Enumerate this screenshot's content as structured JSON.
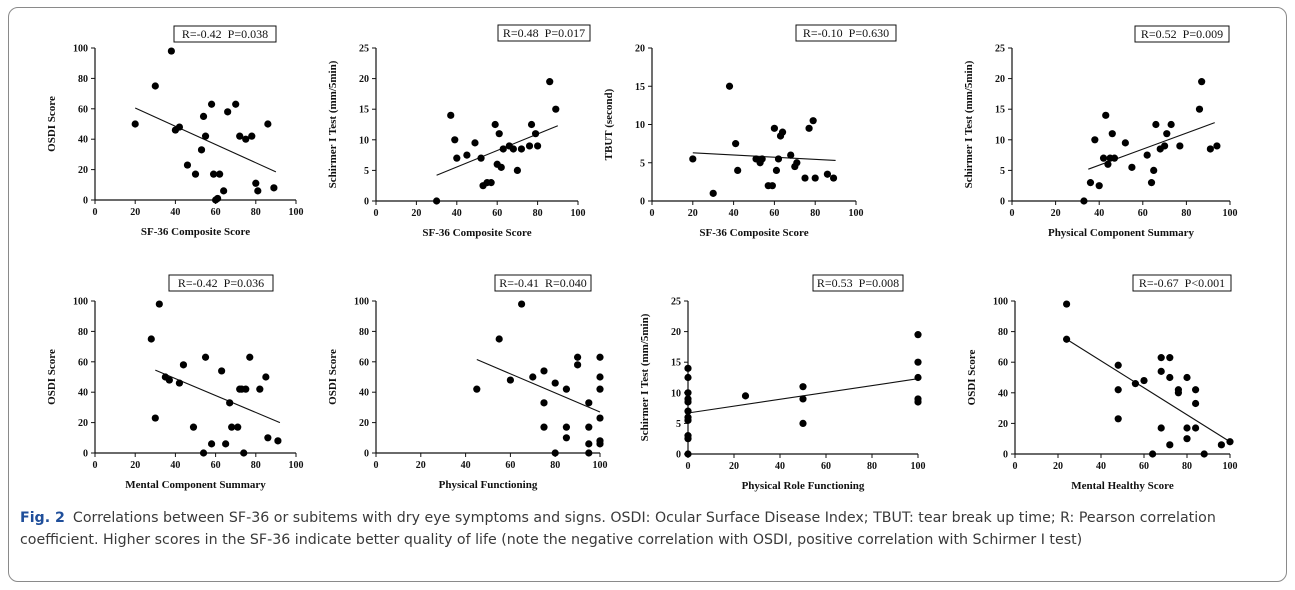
{
  "figure": {
    "caption_label": "Fig. 2",
    "caption_text": "Correlations between SF-36 or subitems with dry eye symptoms and signs. OSDI: Ocular Surface Disease Index; TBUT: tear break up time; R: Pearson correlation coefficient. Higher scores in the SF-36 indicate better quality of life (note the negative correlation with OSDI, positive correlation with Schirmer I test)"
  },
  "chart_data": [
    {
      "type": "scatter",
      "xlabel": "SF-36 Composite Score",
      "ylabel": "OSDI Score",
      "stat": "R=-0.42  P=0.038",
      "xlim": [
        0,
        100
      ],
      "ylim": [
        0,
        100
      ],
      "xticks": [
        0,
        20,
        40,
        60,
        80,
        100
      ],
      "yticks": [
        0,
        20,
        40,
        60,
        80,
        100
      ],
      "points": [
        [
          20,
          50
        ],
        [
          30,
          75
        ],
        [
          38,
          98
        ],
        [
          40,
          46
        ],
        [
          42,
          48
        ],
        [
          46,
          23
        ],
        [
          50,
          17
        ],
        [
          53,
          33
        ],
        [
          54,
          55
        ],
        [
          55,
          42
        ],
        [
          58,
          63
        ],
        [
          59,
          17
        ],
        [
          60,
          0
        ],
        [
          61,
          1
        ],
        [
          62,
          17
        ],
        [
          64,
          6
        ],
        [
          66,
          58
        ],
        [
          70,
          63
        ],
        [
          72,
          42
        ],
        [
          75,
          40
        ],
        [
          78,
          42
        ],
        [
          80,
          11
        ],
        [
          81,
          6
        ],
        [
          86,
          50
        ],
        [
          89,
          8
        ]
      ],
      "trendline": [
        [
          20,
          60.5
        ],
        [
          90,
          18.5
        ]
      ]
    },
    {
      "type": "scatter",
      "xlabel": "SF-36 Composite Score",
      "ylabel": "Schirmer I Test (mm/5min)",
      "stat": "R=0.48  P=0.017",
      "xlim": [
        0,
        100
      ],
      "ylim": [
        0,
        25
      ],
      "xticks": [
        0,
        20,
        40,
        60,
        80,
        100
      ],
      "yticks": [
        0,
        5,
        10,
        15,
        20,
        25
      ],
      "points": [
        [
          30,
          0
        ],
        [
          37,
          14
        ],
        [
          39,
          10
        ],
        [
          40,
          7
        ],
        [
          45,
          7.5
        ],
        [
          49,
          9.5
        ],
        [
          52,
          7
        ],
        [
          53,
          2.5
        ],
        [
          55,
          3
        ],
        [
          57,
          3
        ],
        [
          59,
          12.5
        ],
        [
          60,
          6
        ],
        [
          61,
          11
        ],
        [
          62,
          5.5
        ],
        [
          63,
          8.5
        ],
        [
          66,
          9
        ],
        [
          68,
          8.5
        ],
        [
          70,
          5
        ],
        [
          72,
          8.5
        ],
        [
          76,
          9
        ],
        [
          77,
          12.5
        ],
        [
          79,
          11
        ],
        [
          80,
          9
        ],
        [
          86,
          19.5
        ],
        [
          89,
          15
        ]
      ],
      "trendline": [
        [
          30,
          4.2
        ],
        [
          90,
          12.3
        ]
      ]
    },
    {
      "type": "scatter",
      "xlabel": "SF-36 Composite Score",
      "ylabel": "TBUT (second)",
      "stat": "R=-0.10  P=0.630",
      "xlim": [
        0,
        100
      ],
      "ylim": [
        0,
        20
      ],
      "xticks": [
        0,
        20,
        40,
        60,
        80,
        100
      ],
      "yticks": [
        0,
        5,
        10,
        15,
        20
      ],
      "points": [
        [
          20,
          5.5
        ],
        [
          30,
          1
        ],
        [
          38,
          15
        ],
        [
          41,
          7.5
        ],
        [
          42,
          4
        ],
        [
          51,
          5.5
        ],
        [
          53,
          5
        ],
        [
          54,
          5.5
        ],
        [
          57,
          2
        ],
        [
          59,
          2
        ],
        [
          60,
          9.5
        ],
        [
          61,
          4
        ],
        [
          62,
          5.5
        ],
        [
          63,
          8.5
        ],
        [
          64,
          9
        ],
        [
          68,
          6
        ],
        [
          70,
          4.5
        ],
        [
          71,
          5
        ],
        [
          75,
          3
        ],
        [
          77,
          9.5
        ],
        [
          79,
          10.5
        ],
        [
          80,
          3
        ],
        [
          86,
          3.5
        ],
        [
          89,
          3
        ]
      ],
      "trendline": [
        [
          20,
          6.3
        ],
        [
          90,
          5.3
        ]
      ]
    },
    {
      "type": "scatter",
      "xlabel": "Physical Component Summary",
      "ylabel": "Schirmer I Test (mm/5min)",
      "stat": "R=0.52  P=0.009",
      "xlim": [
        0,
        100
      ],
      "ylim": [
        0,
        25
      ],
      "xticks": [
        0,
        20,
        40,
        60,
        80,
        100
      ],
      "yticks": [
        0,
        5,
        10,
        15,
        20,
        25
      ],
      "points": [
        [
          33,
          0
        ],
        [
          36,
          3
        ],
        [
          38,
          10
        ],
        [
          40,
          2.5
        ],
        [
          42,
          7
        ],
        [
          43,
          14
        ],
        [
          44,
          6
        ],
        [
          45,
          7
        ],
        [
          46,
          11
        ],
        [
          47,
          7
        ],
        [
          52,
          9.5
        ],
        [
          55,
          5.5
        ],
        [
          62,
          7.5
        ],
        [
          64,
          3
        ],
        [
          65,
          5
        ],
        [
          66,
          12.5
        ],
        [
          68,
          8.5
        ],
        [
          70,
          9
        ],
        [
          71,
          11
        ],
        [
          73,
          12.5
        ],
        [
          77,
          9
        ],
        [
          86,
          15
        ],
        [
          87,
          19.5
        ],
        [
          91,
          8.5
        ],
        [
          94,
          9
        ]
      ],
      "trendline": [
        [
          35,
          5.2
        ],
        [
          93,
          12.8
        ]
      ]
    },
    {
      "type": "scatter",
      "xlabel": "Mental Component Summary",
      "ylabel": "OSDI Score",
      "stat": "R=-0.42  P=0.036",
      "xlim": [
        0,
        100
      ],
      "ylim": [
        0,
        100
      ],
      "xticks": [
        0,
        20,
        40,
        60,
        80,
        100
      ],
      "yticks": [
        0,
        20,
        40,
        60,
        80,
        100
      ],
      "points": [
        [
          28,
          75
        ],
        [
          30,
          23
        ],
        [
          32,
          98
        ],
        [
          35,
          50
        ],
        [
          37,
          48
        ],
        [
          42,
          46
        ],
        [
          44,
          58
        ],
        [
          49,
          17
        ],
        [
          54,
          0
        ],
        [
          55,
          63
        ],
        [
          58,
          6
        ],
        [
          63,
          54
        ],
        [
          65,
          6
        ],
        [
          67,
          33
        ],
        [
          68,
          17
        ],
        [
          71,
          17
        ],
        [
          72,
          42
        ],
        [
          73,
          42
        ],
        [
          74,
          0
        ],
        [
          75,
          42
        ],
        [
          77,
          63
        ],
        [
          82,
          42
        ],
        [
          85,
          50
        ],
        [
          86,
          10
        ],
        [
          91,
          8
        ]
      ],
      "trendline": [
        [
          30,
          54.5
        ],
        [
          92,
          20
        ]
      ]
    },
    {
      "type": "scatter",
      "xlabel": "Physical Functioning",
      "ylabel": "OSDI Score",
      "stat": "R=-0.41  R=0.040",
      "xlim": [
        0,
        100
      ],
      "ylim": [
        0,
        100
      ],
      "xticks": [
        0,
        20,
        40,
        60,
        80,
        100
      ],
      "yticks": [
        0,
        20,
        40,
        60,
        80,
        100
      ],
      "points": [
        [
          45,
          42
        ],
        [
          55,
          75
        ],
        [
          60,
          48
        ],
        [
          65,
          98
        ],
        [
          70,
          50
        ],
        [
          75,
          54
        ],
        [
          75,
          33
        ],
        [
          75,
          17
        ],
        [
          80,
          46
        ],
        [
          80,
          0
        ],
        [
          85,
          42
        ],
        [
          85,
          17
        ],
        [
          85,
          10
        ],
        [
          90,
          58
        ],
        [
          90,
          63
        ],
        [
          95,
          17
        ],
        [
          95,
          6
        ],
        [
          95,
          0
        ],
        [
          100,
          63
        ],
        [
          100,
          50
        ],
        [
          100,
          42
        ],
        [
          100,
          23
        ],
        [
          100,
          8
        ],
        [
          100,
          6
        ],
        [
          95,
          33
        ]
      ],
      "trendline": [
        [
          45,
          61.5
        ],
        [
          100,
          27
        ]
      ]
    },
    {
      "type": "scatter",
      "xlabel": "Physical Role Functioning",
      "ylabel": "Schirmer I Test (mm/5min)",
      "stat": "R=0.53  P=0.008",
      "xlim": [
        0,
        100
      ],
      "ylim": [
        0,
        25
      ],
      "xticks": [
        0,
        20,
        40,
        60,
        80,
        100
      ],
      "yticks": [
        0,
        5,
        10,
        15,
        20,
        25
      ],
      "points": [
        [
          0,
          14
        ],
        [
          0,
          12.5
        ],
        [
          0,
          10
        ],
        [
          0,
          9
        ],
        [
          0,
          8.5
        ],
        [
          0,
          7
        ],
        [
          0,
          6
        ],
        [
          0,
          5.5
        ],
        [
          0,
          3
        ],
        [
          0,
          2.5
        ],
        [
          0,
          0
        ],
        [
          25,
          9.5
        ],
        [
          50,
          11
        ],
        [
          50,
          9
        ],
        [
          50,
          5
        ],
        [
          100,
          19.5
        ],
        [
          100,
          15
        ],
        [
          100,
          12.5
        ],
        [
          100,
          9
        ],
        [
          100,
          8.5
        ]
      ],
      "trendline": [
        [
          0,
          6.7
        ],
        [
          100,
          12.3
        ]
      ]
    },
    {
      "type": "scatter",
      "xlabel": "Mental Healthy Score",
      "ylabel": "OSDI Score",
      "stat": "R=-0.67  P<0.001",
      "xlim": [
        0,
        100
      ],
      "ylim": [
        0,
        100
      ],
      "xticks": [
        0,
        20,
        40,
        60,
        80,
        100
      ],
      "yticks": [
        0,
        20,
        40,
        60,
        80,
        100
      ],
      "points": [
        [
          24,
          98
        ],
        [
          24,
          75
        ],
        [
          48,
          58
        ],
        [
          48,
          42
        ],
        [
          48,
          23
        ],
        [
          56,
          46
        ],
        [
          60,
          48
        ],
        [
          64,
          0
        ],
        [
          68,
          63
        ],
        [
          68,
          54
        ],
        [
          68,
          17
        ],
        [
          72,
          63
        ],
        [
          72,
          50
        ],
        [
          72,
          6
        ],
        [
          76,
          42
        ],
        [
          76,
          40
        ],
        [
          80,
          50
        ],
        [
          80,
          17
        ],
        [
          80,
          10
        ],
        [
          84,
          42
        ],
        [
          84,
          33
        ],
        [
          84,
          17
        ],
        [
          88,
          0
        ],
        [
          96,
          6
        ],
        [
          100,
          8
        ]
      ],
      "trendline": [
        [
          24,
          75
        ],
        [
          100,
          8
        ]
      ]
    }
  ]
}
